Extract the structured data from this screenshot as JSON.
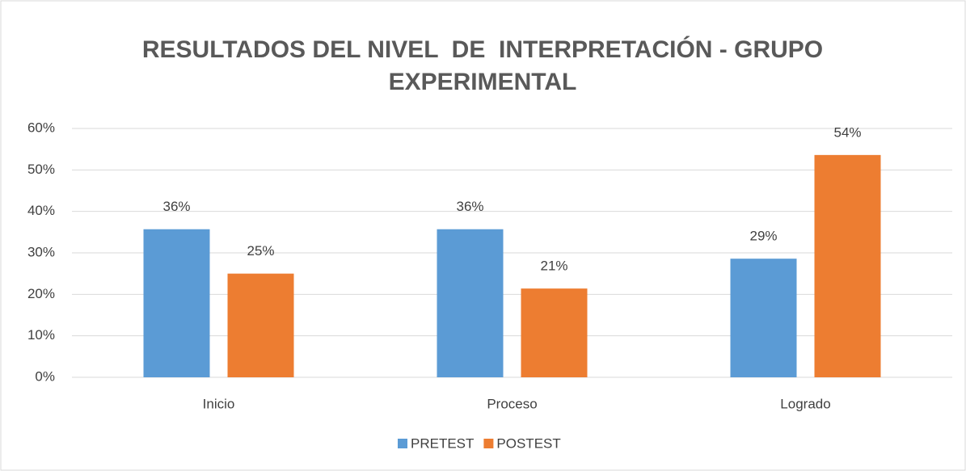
{
  "chart_data": {
    "type": "bar",
    "title": "RESULTADOS DEL NIVEL  DE  INTERPRETACIÓN - GRUPO EXPERIMENTAL",
    "categories": [
      "Inicio",
      "Proceso",
      "Logrado"
    ],
    "series": [
      {
        "name": "PRETEST",
        "color": "#5b9bd5",
        "values": [
          35.7,
          35.7,
          28.6
        ],
        "value_labels": [
          "36%",
          "36%",
          "29%"
        ]
      },
      {
        "name": "POSTEST",
        "color": "#ed7d31",
        "values": [
          25,
          21.4,
          53.6
        ],
        "value_labels": [
          "25%",
          "21%",
          "54%"
        ]
      }
    ],
    "ylim": [
      0,
      60
    ],
    "yticks": [
      {
        "value": 0,
        "label": "0%"
      },
      {
        "value": 10,
        "label": "10%"
      },
      {
        "value": 20,
        "label": "20%"
      },
      {
        "value": 30,
        "label": "30%"
      },
      {
        "value": 40,
        "label": "40%"
      },
      {
        "value": 50,
        "label": "50%"
      },
      {
        "value": 60,
        "label": "60%"
      }
    ],
    "grid": true,
    "legend": "bottom"
  }
}
